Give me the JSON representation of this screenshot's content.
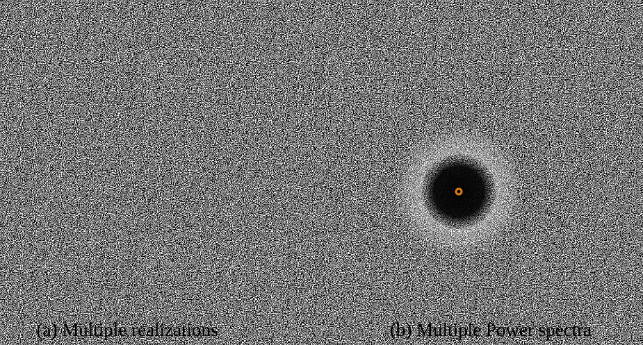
{
  "panels": [
    {
      "caption": "(a) Multiple realizations"
    },
    {
      "caption": "(b) Multiple Power spectra"
    }
  ]
}
